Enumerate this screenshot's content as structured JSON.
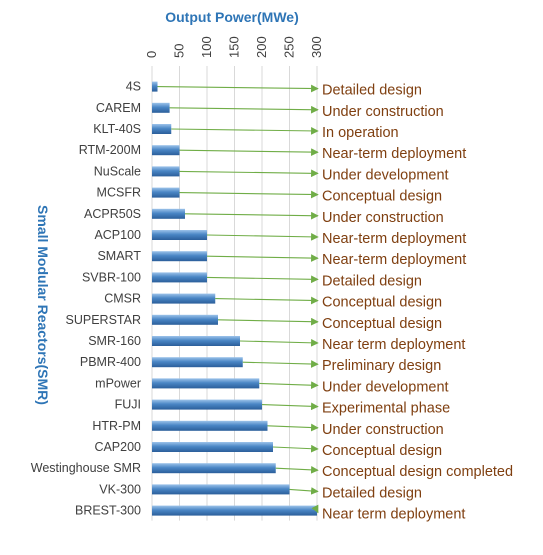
{
  "chart_data": {
    "type": "bar",
    "orientation": "horizontal",
    "title": "Output Power(MWe)",
    "ylabel": "Small Modular Reactors(SMR)",
    "xlim": [
      0,
      300
    ],
    "xticks": [
      0,
      50,
      100,
      150,
      200,
      250,
      300
    ],
    "grid": true,
    "bar_color": "#4A86C5",
    "arrow_color": "#70AD47",
    "status_color": "#7F3F10",
    "title_color": "#2E75B6",
    "categories": [
      "4S",
      "CAREM",
      "KLT-40S",
      "RTM-200M",
      "NuScale",
      "MCSFR",
      "ACPR50S",
      "ACP100",
      "SMART",
      "SVBR-100",
      "CMSR",
      "SUPERSTAR",
      "SMR-160",
      "PBMR-400",
      "mPower",
      "FUJI",
      "HTR-PM",
      "CAP200",
      "Westinghouse SMR",
      "VK-300",
      "BREST-300"
    ],
    "values": [
      10,
      32,
      35,
      50,
      50,
      50,
      60,
      100,
      100,
      100,
      115,
      120,
      160,
      165,
      195,
      200,
      210,
      220,
      225,
      250,
      300
    ],
    "statuses": [
      "Detailed design",
      "Under construction",
      "In operation",
      "Near-term deployment",
      "Under development",
      "Conceptual design",
      "Under construction",
      "Near-term deployment",
      "Near-term deployment",
      "Detailed design",
      "Conceptual design",
      "Conceptual design",
      "Near term deployment",
      "Preliminary design",
      "Under development",
      "Experimental phase",
      "Under construction",
      "Conceptual design",
      "Conceptual design completed",
      "Detailed design",
      "Near term deployment"
    ]
  }
}
